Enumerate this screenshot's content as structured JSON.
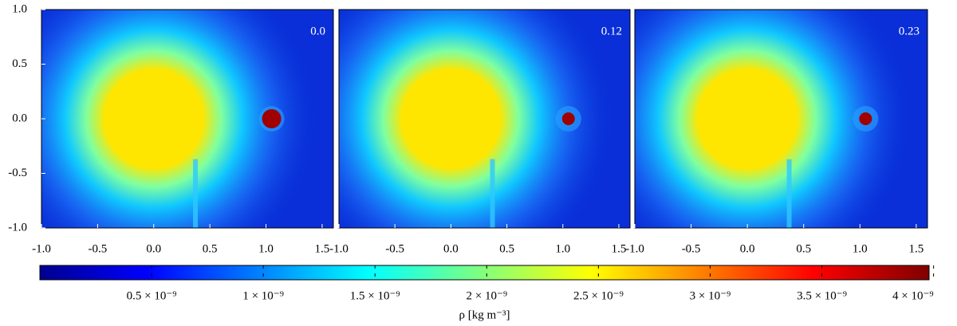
{
  "chart_data": [
    {
      "type": "heatmap",
      "annotation": "0.0",
      "xlim": [
        -1,
        1.6
      ],
      "ylim": [
        -1,
        1
      ],
      "xticks": [
        {
          "value": -1,
          "label": "-1.0"
        },
        -0.5,
        {
          "value": 0,
          "label": "0.0"
        },
        0.5,
        {
          "value": 1,
          "label": "1.0"
        },
        1.5
      ],
      "yticks": [
        {
          "value": 1,
          "label": "1.0"
        },
        0.5,
        {
          "value": 0,
          "label": "0.0"
        },
        -0.5,
        {
          "value": -1,
          "label": "-1.0"
        }
      ]
    },
    {
      "type": "heatmap",
      "annotation": "0.12",
      "xlim": [
        -1,
        1.6
      ],
      "ylim": [
        -1,
        1
      ],
      "xticks": [
        {
          "value": -1,
          "label": "-1.0"
        },
        -0.5,
        {
          "value": 0,
          "label": "0.0"
        },
        0.5,
        {
          "value": 1,
          "label": "1.0"
        },
        1.5
      ]
    },
    {
      "type": "heatmap",
      "annotation": "0.23",
      "xlim": [
        -1,
        1.6
      ],
      "ylim": [
        -1,
        1
      ],
      "xticks": [
        {
          "value": -1,
          "label": "-1.0"
        },
        -0.5,
        {
          "value": 0,
          "label": "0.0"
        },
        0.5,
        {
          "value": 1,
          "label": "1.0"
        },
        1.5
      ]
    },
    {
      "type": "colorbar",
      "label": "ρ [kg m⁻³]",
      "lim": [
        0,
        3.98e-09
      ],
      "ticks": [
        {
          "value": 5e-10,
          "label": "0.5 × 10⁻⁹"
        },
        {
          "value": 1e-09,
          "label": "1 × 10⁻⁹"
        },
        {
          "value": 1.5e-09,
          "label": "1.5 × 10⁻⁹"
        },
        {
          "value": 2e-09,
          "label": "2 × 10⁻⁹"
        },
        {
          "value": 2.5e-09,
          "label": "2.5 × 10⁻⁹"
        },
        {
          "value": 3e-09,
          "label": "3 × 10⁻⁹"
        },
        {
          "value": 3.5e-09,
          "label": "3.5 × 10⁻⁹"
        },
        {
          "value": 4e-09,
          "label": "4 × 10⁻⁹"
        }
      ]
    }
  ]
}
